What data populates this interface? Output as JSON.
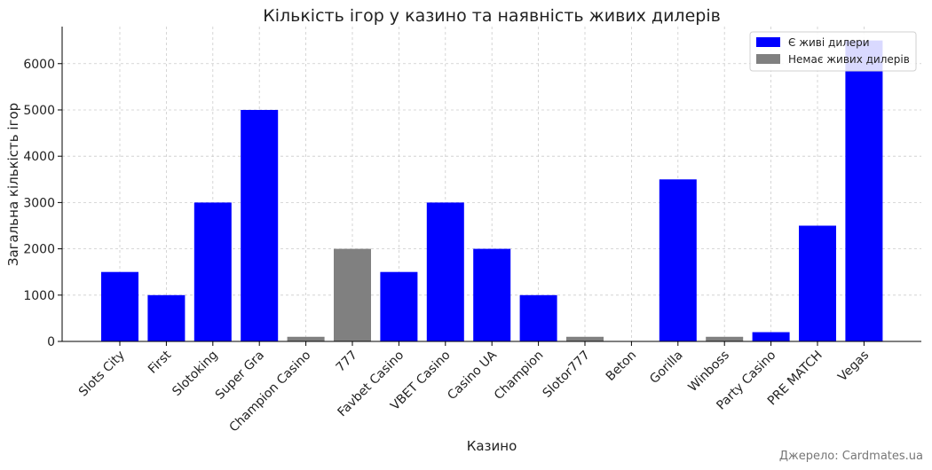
{
  "chart_data": {
    "type": "bar",
    "title": "Кількість ігор у казино та наявність живих дилерів",
    "xlabel": "Казино",
    "ylabel": "Загальна кількість ігор",
    "ylim": [
      0,
      6800
    ],
    "yticks": [
      0,
      1000,
      2000,
      3000,
      4000,
      5000,
      6000
    ],
    "grid": true,
    "legend_position": "top-right",
    "categories": [
      "Slots City",
      "First",
      "Slotoking",
      "Super Gra",
      "Champion Casino",
      "777",
      "Favbet Casino",
      "VBET Casino",
      "Casino UA",
      "Champion",
      "Slotor777",
      "Beton",
      "Gorilla",
      "Winboss",
      "Party Casino",
      "PRE MATCH",
      "Vegas"
    ],
    "values": [
      1500,
      1000,
      3000,
      5000,
      100,
      2000,
      1500,
      3000,
      2000,
      1000,
      100,
      0,
      3500,
      100,
      200,
      2500,
      6500
    ],
    "live_dealers": [
      true,
      true,
      true,
      true,
      false,
      false,
      true,
      true,
      true,
      true,
      false,
      true,
      true,
      false,
      true,
      true,
      true
    ],
    "legend": [
      {
        "label": "Є живі дилери",
        "color": "#0000ff"
      },
      {
        "label": "Немає живих дилерів",
        "color": "#808080"
      }
    ]
  },
  "source": "Джерело: Cardmates.ua"
}
